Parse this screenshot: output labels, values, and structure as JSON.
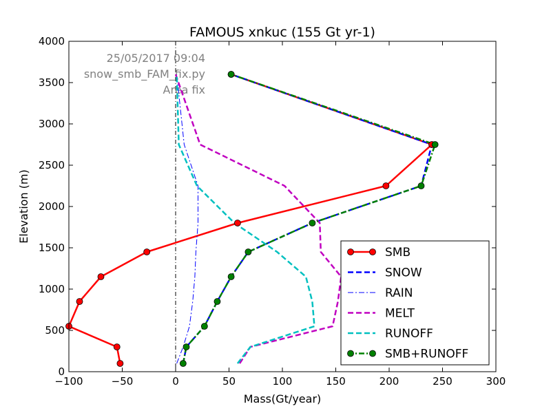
{
  "chart_data": {
    "type": "line",
    "title": "FAMOUS xnkuc (155 Gt yr-1)",
    "xlabel": "Mass(Gt/year)",
    "ylabel": "Elevation (m)",
    "xlim": [
      -100,
      300
    ],
    "ylim": [
      0,
      4000
    ],
    "xticks": [
      -100,
      -50,
      0,
      50,
      100,
      150,
      200,
      250,
      300
    ],
    "yticks": [
      0,
      500,
      1000,
      1500,
      2000,
      2500,
      3000,
      3500,
      4000
    ],
    "grid": false,
    "legend_position": "lower-right",
    "annotations": [
      "25/05/2017 09:04",
      "snow_smb_FAM_fix.py",
      "Area fix"
    ],
    "annotation_color": "#808080",
    "zero_line": {
      "x": 0,
      "color": "#000000",
      "style": "dash-dot"
    },
    "series": [
      {
        "name": "SMB",
        "color": "#ff0000",
        "line_style": "solid",
        "marker": "circle",
        "x": [
          -52,
          -55,
          -100,
          -90,
          -70,
          -27,
          58,
          197,
          240,
          52
        ],
        "y": [
          100,
          300,
          550,
          850,
          1150,
          1450,
          1800,
          2250,
          2750,
          3600
        ]
      },
      {
        "name": "SNOW",
        "color": "#0000ff",
        "line_style": "dashed",
        "marker": "none",
        "x": [
          7,
          10,
          27,
          39,
          52,
          68,
          128,
          230,
          240,
          52
        ],
        "y": [
          100,
          300,
          550,
          850,
          1150,
          1450,
          1800,
          2250,
          2750,
          3600
        ]
      },
      {
        "name": "RAIN",
        "color": "#0000ff",
        "line_style": "dash-dot",
        "marker": "none",
        "x": [
          1,
          7,
          13,
          16,
          18,
          19,
          21,
          21,
          8,
          1
        ],
        "y": [
          100,
          300,
          550,
          850,
          1150,
          1450,
          1800,
          2250,
          2750,
          3600
        ]
      },
      {
        "name": "MELT",
        "color": "#c000c0",
        "line_style": "dashed",
        "marker": "none",
        "x": [
          60,
          70,
          147,
          152,
          155,
          136,
          135,
          102,
          23,
          0
        ],
        "y": [
          100,
          300,
          550,
          850,
          1150,
          1450,
          1800,
          2250,
          2750,
          3600
        ]
      },
      {
        "name": "RUNOFF",
        "color": "#00c0c0",
        "line_style": "dashed",
        "marker": "none",
        "x": [
          58,
          70,
          130,
          128,
          122,
          95,
          55,
          20,
          3,
          1
        ],
        "y": [
          100,
          300,
          550,
          850,
          1150,
          1450,
          1800,
          2250,
          2750,
          3600
        ]
      },
      {
        "name": "SMB+RUNOFF",
        "color": "#008000",
        "line_style": "dash-dot",
        "marker": "circle",
        "x": [
          7,
          10,
          27,
          39,
          52,
          68,
          128,
          230,
          243,
          52
        ],
        "y": [
          100,
          300,
          550,
          850,
          1150,
          1450,
          1800,
          2250,
          2750,
          3600
        ]
      }
    ]
  }
}
